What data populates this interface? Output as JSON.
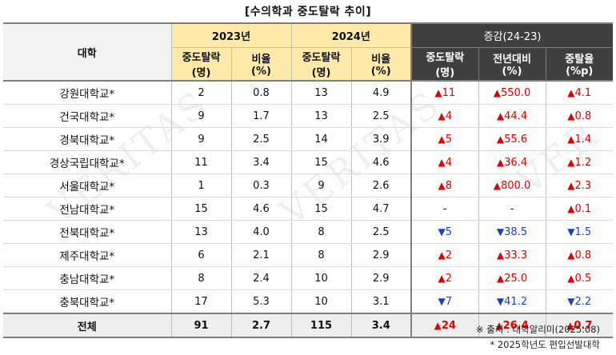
{
  "title": "[수의학과 중도탈락 추이]",
  "headers": {
    "univ": "대학",
    "year1": "2023년",
    "year2": "2024년",
    "change": "증감(24-23)",
    "dropouts": [
      "중도탈락",
      "(명)"
    ],
    "ratio": [
      "비율",
      "(%)"
    ],
    "chg_dropouts": [
      "중도탈락",
      "(명)"
    ],
    "chg_yoy": [
      "전년대비",
      "(%)"
    ],
    "chg_rate": [
      "중탈율",
      "(%p)"
    ]
  },
  "rows": [
    {
      "univ": "강원대학교*",
      "d23": "2",
      "r23": "0.8",
      "d24": "13",
      "r24": "4.9",
      "cd": "11",
      "cdDir": "up",
      "cy": "550.0",
      "cyDir": "up",
      "cr": "4.1",
      "crDir": "up"
    },
    {
      "univ": "건국대학교*",
      "d23": "9",
      "r23": "1.7",
      "d24": "13",
      "r24": "2.5",
      "cd": "4",
      "cdDir": "up",
      "cy": "44.4",
      "cyDir": "up",
      "cr": "0.8",
      "crDir": "up"
    },
    {
      "univ": "경북대학교*",
      "d23": "9",
      "r23": "2.5",
      "d24": "14",
      "r24": "3.9",
      "cd": "5",
      "cdDir": "up",
      "cy": "55.6",
      "cyDir": "up",
      "cr": "1.4",
      "crDir": "up"
    },
    {
      "univ": "경상국립대학교*",
      "d23": "11",
      "r23": "3.4",
      "d24": "15",
      "r24": "4.6",
      "cd": "4",
      "cdDir": "up",
      "cy": "36.4",
      "cyDir": "up",
      "cr": "1.2",
      "crDir": "up"
    },
    {
      "univ": "서울대학교*",
      "d23": "1",
      "r23": "0.3",
      "d24": "9",
      "r24": "2.6",
      "cd": "8",
      "cdDir": "up",
      "cy": "800.0",
      "cyDir": "up",
      "cr": "2.3",
      "crDir": "up"
    },
    {
      "univ": "전남대학교*",
      "d23": "15",
      "r23": "4.6",
      "d24": "15",
      "r24": "4.7",
      "cd": "-",
      "cdDir": "none",
      "cy": "-",
      "cyDir": "none",
      "cr": "0.1",
      "crDir": "up"
    },
    {
      "univ": "전북대학교*",
      "d23": "13",
      "r23": "4.0",
      "d24": "8",
      "r24": "2.5",
      "cd": "5",
      "cdDir": "down",
      "cy": "38.5",
      "cyDir": "down",
      "cr": "1.5",
      "crDir": "down"
    },
    {
      "univ": "제주대학교*",
      "d23": "6",
      "r23": "2.1",
      "d24": "8",
      "r24": "2.9",
      "cd": "2",
      "cdDir": "up",
      "cy": "33.3",
      "cyDir": "up",
      "cr": "0.8",
      "crDir": "up"
    },
    {
      "univ": "충남대학교*",
      "d23": "8",
      "r23": "2.4",
      "d24": "10",
      "r24": "2.9",
      "cd": "2",
      "cdDir": "up",
      "cy": "25.0",
      "cyDir": "up",
      "cr": "0.5",
      "crDir": "up"
    },
    {
      "univ": "충북대학교*",
      "d23": "17",
      "r23": "5.3",
      "d24": "10",
      "r24": "3.1",
      "cd": "7",
      "cdDir": "down",
      "cy": "41.2",
      "cyDir": "down",
      "cr": "2.2",
      "crDir": "down"
    }
  ],
  "total": {
    "univ": "전체",
    "d23": "91",
    "r23": "2.7",
    "d24": "115",
    "r24": "3.4",
    "cd": "24",
    "cdDir": "up",
    "cy": "26.4",
    "cyDir": "up",
    "cr": "0.7",
    "crDir": "up"
  },
  "footnotes": {
    "source": "※ 출처 : 대학알리미(2025.08)",
    "note": "* 2025학년도 편입선발대학"
  },
  "colors": {
    "up": "#e00000",
    "down": "#1f3dbf",
    "header_dark": "#3f3f3f",
    "header_yellow": "#fde9a9"
  },
  "watermark": "VERITAS α"
}
